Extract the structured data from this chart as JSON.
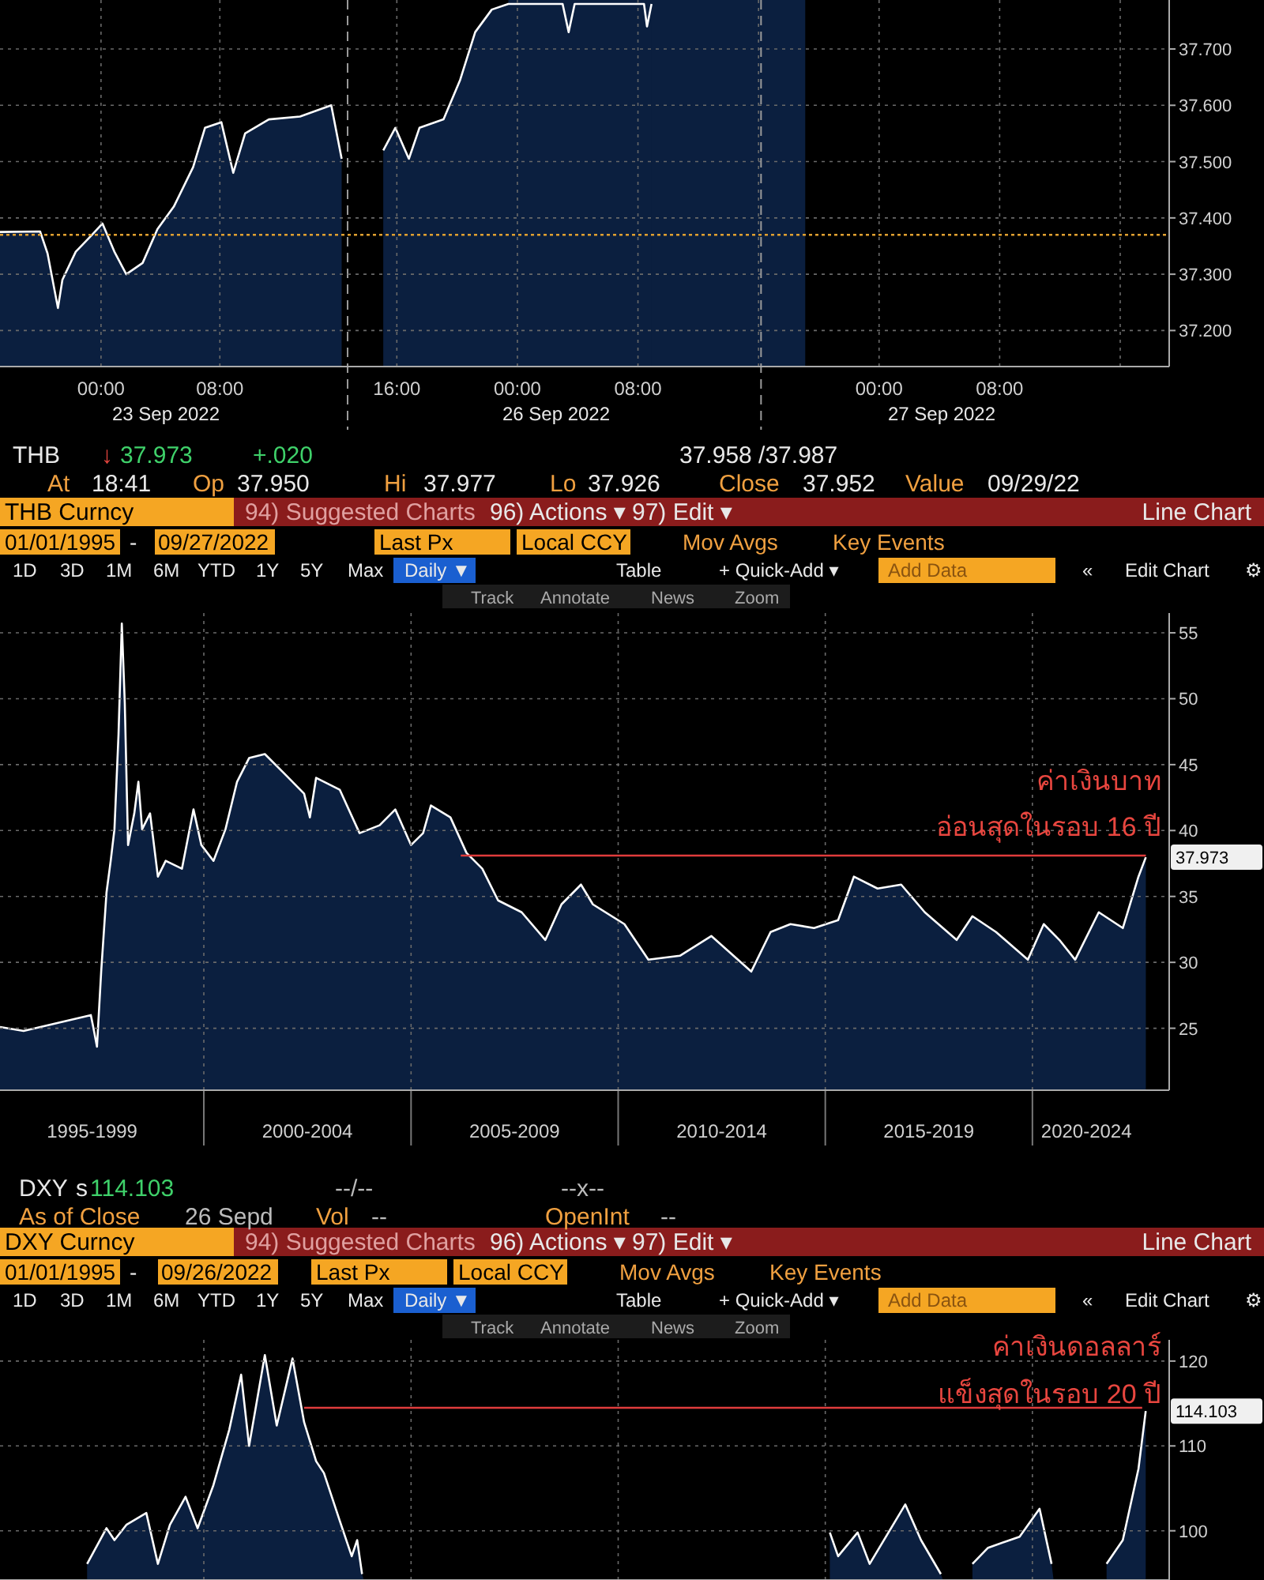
{
  "chart_data": [
    {
      "type": "area",
      "x": [
        "2022-09-22T17:12",
        "2022-09-22T19:54",
        "2022-09-22T20:24",
        "2022-09-22T21:06",
        "2022-09-22T21:24",
        "2022-09-22T22:18",
        "2022-09-22T23:24",
        "2022-09-23T00:06",
        "2022-09-23T00:54",
        "2022-09-23T01:42",
        "2022-09-23T02:48",
        "2022-09-23T03:48",
        "2022-09-23T04:54",
        "2022-09-23T06:12",
        "2022-09-23T07:00",
        "2022-09-23T08:06",
        "2022-09-23T08:54",
        "2022-09-23T09:42",
        "2022-09-23T11:18",
        "2022-09-23T13:24",
        "2022-09-23T15:30",
        "2022-09-23T16:12"
      ],
      "series": [
        {
          "color": "#ffffff",
          "values": [
            37.375,
            37.376,
            37.337,
            37.24,
            37.29,
            37.34,
            37.37,
            37.39,
            37.34,
            37.3,
            37.32,
            37.38,
            37.42,
            37.49,
            37.56,
            37.57,
            37.48,
            37.55,
            37.575,
            37.58,
            37.6,
            37.505
          ]
        }
      ],
      "xlim": [
        "2022-09-22T17:12",
        "2022-09-23T16:36"
      ],
      "xticks": [
        {
          "value": "2022-09-23T00:00",
          "label": "00:00"
        },
        {
          "value": "2022-09-23T08:00",
          "label": "08:00"
        }
      ],
      "ylim": [
        37.136,
        37.787
      ],
      "yticks": [
        37.2,
        37.3,
        37.4,
        37.5,
        37.6,
        37.7
      ],
      "grid": true,
      "tick_labels": "x",
      "ref_lines": [
        {
          "axis": "y",
          "value": 37.37,
          "color": "#e0a030",
          "line_style": "dotted"
        },
        {
          "axis": "x",
          "value": "2022-09-23T16:36",
          "color": "#9a9a9a",
          "line_style": "dashed"
        }
      ],
      "annotations": [
        "23 Sep 2022"
      ]
    },
    {
      "type": "area",
      "x": [
        "2022-09-25T15:06",
        "2022-09-25T15:54",
        "2022-09-25T16:48",
        "2022-09-25T17:30",
        "2022-09-25T19:06",
        "2022-09-25T20:12",
        "2022-09-25T21:12",
        "2022-09-25T22:18",
        "2022-09-25T23:24",
        "2022-09-26T03:00",
        "2022-09-26T03:24",
        "2022-09-26T03:48",
        "2022-09-26T08:24",
        "2022-09-26T08:36",
        "2022-09-26T08:54"
      ],
      "series": [
        {
          "color": "#ffffff",
          "values": [
            37.52,
            37.56,
            37.505,
            37.56,
            37.575,
            37.645,
            37.73,
            37.77,
            37.78,
            37.78,
            37.73,
            37.78,
            37.78,
            37.74,
            37.78
          ]
        }
      ],
      "xlim": [
        "2022-09-25T12:44",
        "2022-09-27T19:15"
      ],
      "xticks": [
        {
          "value": "2022-09-25T16:00",
          "label": "16:00"
        },
        {
          "value": "2022-09-26T00:00",
          "label": "00:00"
        },
        {
          "value": "2022-09-26T08:00",
          "label": "08:00"
        },
        {
          "value": "2022-09-26T16:00",
          "label": null
        },
        {
          "value": "2022-09-27T00:00",
          "label": "00:00"
        },
        {
          "value": "2022-09-27T08:00",
          "label": "08:00"
        },
        {
          "value": "2022-09-27T16:00",
          "label": null
        }
      ],
      "ylim": [
        37.136,
        37.787
      ],
      "yticks": [
        {
          "value": 37.2,
          "label": "37.200"
        },
        {
          "value": 37.3,
          "label": "37.300"
        },
        {
          "value": 37.4,
          "label": "37.400"
        },
        {
          "value": 37.5,
          "label": "37.500"
        },
        {
          "value": 37.6,
          "label": "37.600"
        },
        {
          "value": 37.7,
          "label": "37.700"
        }
      ],
      "grid": true,
      "ref_lines": [
        {
          "axis": "y",
          "value": 37.37,
          "color": "#e0a030",
          "line_style": "dotted"
        },
        {
          "axis": "x",
          "value": "2022-09-26T16:10",
          "color": "#9a9a9a",
          "line_style": "dashed"
        }
      ],
      "bands": [
        {
          "axis": "x",
          "from": "2022-09-25T23:24",
          "to": "2022-09-26T19:06",
          "color": "#0b1f3f"
        }
      ],
      "annotations": [
        "26 Sep 2022",
        "27 Sep 2022"
      ]
    },
    {
      "type": "area",
      "x": [
        "1995-01-30",
        "1995-08-26",
        "1996-08-08",
        "1997-04-10",
        "1997-05-01",
        "1997-06-03",
        "1997-07-10",
        "1997-08-26",
        "1997-10-02",
        "1997-11-04",
        "1997-12-10",
        "1998-01-08",
        "1998-02-03",
        "1998-03-04",
        "1998-04-28",
        "1998-06-03",
        "1998-07-06",
        "1998-09-14",
        "1998-11-22",
        "1999-01-30",
        "1999-06-22",
        "1999-10-02",
        "1999-12-10",
        "2000-03-26",
        "2000-07-10",
        "2000-10-20",
        "2001-02-03",
        "2001-06-22",
        "2001-12-14",
        "2002-06-03",
        "2002-07-24",
        "2002-09-17",
        "2003-04-13",
        "2003-10-05",
        "2004-03-30",
        "2004-08-15",
        "2005-01-01",
        "2005-04-17",
        "2005-06-25",
        "2005-12-14",
        "2006-05-05",
        "2006-09-21",
        "2007-02-07",
        "2007-09-03",
        "2008-03-30",
        "2008-08-19",
        "2009-02-07",
        "2009-05-23",
        "2010-02-25",
        "2010-09-24",
        "2011-06-29",
        "2012-04-01",
        "2013-03-19",
        "2013-09-06",
        "2014-02-28",
        "2014-09-24",
        "2015-04-24",
        "2015-09-10",
        "2016-04-06",
        "2016-10-31",
        "2017-05-27",
        "2018-03-04",
        "2018-07-21",
        "2019-02-14",
        "2019-11-22",
        "2020-04-10",
        "2020-08-26",
        "2021-01-12",
        "2021-08-08",
        "2022-03-08",
        "2022-07-24",
        "2022-09-27"
      ],
      "series": [
        {
          "color": "#ffffff",
          "values": [
            25.1,
            24.8,
            25.5,
            26.0,
            25.1,
            23.6,
            29.3,
            35.3,
            37.7,
            40.1,
            47.3,
            55.7,
            49.7,
            38.9,
            41.3,
            43.7,
            40.1,
            41.3,
            36.5,
            37.7,
            37.1,
            41.6,
            38.9,
            37.7,
            40.1,
            43.7,
            45.5,
            45.8,
            44.3,
            42.8,
            41.0,
            44.0,
            43.1,
            39.8,
            40.4,
            41.6,
            38.9,
            39.8,
            41.9,
            41.0,
            38.3,
            37.1,
            34.7,
            33.8,
            31.7,
            34.4,
            35.9,
            34.4,
            32.9,
            30.2,
            30.5,
            32.0,
            29.3,
            32.3,
            32.9,
            32.6,
            33.2,
            36.5,
            35.6,
            35.9,
            33.8,
            31.7,
            33.5,
            32.3,
            30.2,
            32.9,
            31.7,
            30.2,
            33.8,
            32.6,
            36.5,
            37.973
          ],
          "value_labels": [
            null,
            null,
            null,
            null,
            null,
            null,
            null,
            null,
            null,
            null,
            null,
            null,
            null,
            null,
            null,
            null,
            null,
            null,
            null,
            null,
            null,
            null,
            null,
            null,
            null,
            null,
            null,
            null,
            null,
            null,
            null,
            null,
            null,
            null,
            null,
            null,
            null,
            null,
            null,
            null,
            null,
            null,
            null,
            null,
            null,
            null,
            null,
            null,
            null,
            null,
            null,
            null,
            null,
            null,
            null,
            null,
            null,
            null,
            null,
            null,
            null,
            null,
            null,
            null,
            null,
            null,
            null,
            null,
            null,
            null,
            null,
            "37.973"
          ]
        },
        {
          "type": "line",
          "color": "#e03c3c",
          "x": [
            "2006-03-15",
            "2022-09-27"
          ],
          "values": [
            38.1,
            38.1
          ]
        }
      ],
      "xlim": [
        "1995-01-30",
        "2023-04-21"
      ],
      "xticks": [
        {
          "value": "1997-04-21",
          "label": "1995-1999"
        },
        {
          "value": "2000-01-01",
          "label": null
        },
        {
          "value": "2002-07-02",
          "label": "2000-2004"
        },
        {
          "value": "2005-01-01",
          "label": null
        },
        {
          "value": "2007-07-02",
          "label": "2005-2009"
        },
        {
          "value": "2010-01-01",
          "label": null
        },
        {
          "value": "2012-07-02",
          "label": "2010-2014"
        },
        {
          "value": "2015-01-01",
          "label": null
        },
        {
          "value": "2017-07-02",
          "label": "2015-2019"
        },
        {
          "value": "2020-01-01",
          "label": null
        },
        {
          "value": "2021-04-21",
          "label": "2020-2024"
        }
      ],
      "ylim": [
        20.3,
        56.5
      ],
      "yticks": [
        25,
        30,
        35,
        40,
        45,
        50,
        55
      ],
      "grid": true,
      "annotations": [
        "ค่าเงินบาท",
        "อ่อนสุดในรอบ 16 ปี",
        "THB",
        "↓",
        "37.973",
        "+.020",
        "37.958 /37.987",
        "At",
        "18:41",
        "Op",
        "37.950",
        "Hi",
        "37.977",
        "Lo",
        "37.926",
        "Close",
        "37.952",
        "Value",
        "09/29/22",
        "THB Curncy",
        "94) Suggested Charts",
        "96) Actions ▾",
        "97) Edit ▾",
        "Line Chart",
        "01/01/1995",
        "-",
        "09/27/2022",
        "Last Px",
        "Local CCY",
        "Mov Avgs",
        "Key Events",
        "1D",
        "3D",
        "1M",
        "6M",
        "YTD",
        "1Y",
        "5Y",
        "Max",
        "Daily ▼",
        "Table",
        "+ Quick-Add ▾",
        "Add Data",
        "«",
        "Edit Chart",
        "⚙",
        "Track",
        "Annotate",
        "News",
        "Zoom"
      ]
    },
    {
      "type": "area",
      "x": [
        "1997-03-08",
        "1997-08-26",
        "1997-11-04",
        "1998-02-17",
        "1998-08-12",
        "1998-11-22",
        "1999-03-08",
        "1999-07-24",
        "1999-11-07",
        "2000-03-26",
        "2000-08-12",
        "2000-11-25",
        "2001-02-03",
        "2001-06-22",
        "2001-10-05",
        "2002-02-21",
        "2002-06-03",
        "2002-09-17",
        "2002-11-25",
        "2003-04-13",
        "2003-07-28",
        "2003-09-14",
        "2003-10-27",
        "2003-11-12",
        "2015-02-10",
        "2015-04-24",
        "2015-10-13",
        "2016-01-27",
        "2016-12-06",
        "2017-04-24",
        "2017-10-16",
        "2017-11-03",
        "2018-07-21",
        "2018-12-06",
        "2019-09-10",
        "2020-03-04",
        "2020-06-18",
        "2020-07-06",
        "2021-10-16",
        "2022-03-08",
        "2022-07-24",
        "2022-09-26"
      ],
      "series": [
        {
          "color": "#ffffff",
          "values": [
            96.1,
            100.3,
            98.9,
            100.7,
            102.1,
            96.1,
            100.7,
            104.0,
            100.3,
            105.4,
            111.9,
            118.4,
            110.0,
            120.7,
            112.4,
            120.3,
            112.8,
            108.2,
            106.8,
            101.2,
            97.0,
            98.9,
            94.9,
            null,
            99.8,
            97.0,
            99.8,
            96.1,
            103.1,
            98.9,
            94.9,
            null,
            96.1,
            98.0,
            99.3,
            102.6,
            96.1,
            null,
            96.1,
            98.9,
            107.3,
            114.103
          ],
          "value_labels": [
            null,
            null,
            null,
            null,
            null,
            null,
            null,
            null,
            null,
            null,
            null,
            null,
            null,
            null,
            null,
            null,
            null,
            null,
            null,
            null,
            null,
            null,
            null,
            null,
            null,
            null,
            null,
            null,
            null,
            null,
            null,
            null,
            null,
            null,
            null,
            null,
            null,
            null,
            null,
            null,
            null,
            "114.103"
          ]
        },
        {
          "type": "line",
          "color": "#e03c3c",
          "x": [
            "2002-06-03",
            "2022-08-26"
          ],
          "values": [
            114.5,
            114.5
          ]
        }
      ],
      "xlim": [
        "1995-01-30",
        "2023-04-21"
      ],
      "xticks": [
        {
          "value": "2000-01-01",
          "label": null
        },
        {
          "value": "2005-01-01",
          "label": null
        },
        {
          "value": "2010-01-01",
          "label": null
        },
        {
          "value": "2015-01-01",
          "label": null
        },
        {
          "value": "2020-01-01",
          "label": null
        }
      ],
      "ylim": [
        94.2,
        122.5
      ],
      "yticks": [
        100,
        110,
        120
      ],
      "grid": true,
      "tick_labels": "y",
      "annotations": [
        "ค่าเงินดอลลาร์",
        "แข็งสุดในรอบ 20 ปี",
        "DXY",
        "s",
        "114.103",
        "--/--",
        "--x--",
        "As of Close",
        "26 Sepd",
        "Vol",
        "--",
        "OpenInt",
        "--",
        "DXY Curncy",
        "94) Suggested Charts",
        "96) Actions ▾",
        "97) Edit ▾",
        "Line Chart",
        "01/01/1995",
        "-",
        "09/26/2022",
        "Last Px",
        "Local CCY",
        "Mov Avgs",
        "Key Events",
        "1D",
        "3D",
        "1M",
        "6M",
        "YTD",
        "1Y",
        "5Y",
        "Max",
        "Daily ▼",
        "Table",
        "+ Quick-Add ▾",
        "Add Data",
        "«",
        "Edit Chart",
        "⚙",
        "Track",
        "Annotate",
        "News",
        "Zoom"
      ]
    }
  ]
}
